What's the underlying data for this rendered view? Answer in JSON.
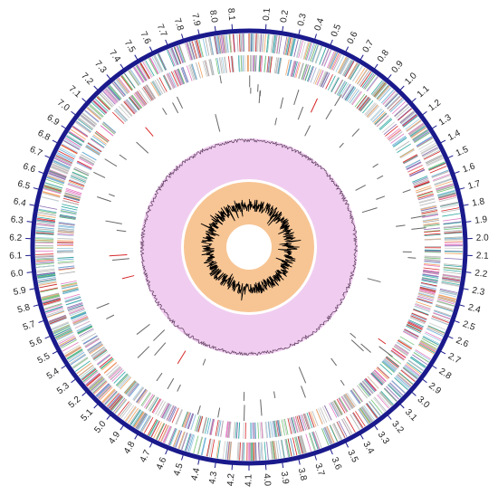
{
  "chart_data": {
    "type": "circular-genome",
    "xlim": [
      0,
      8.2
    ],
    "xticks": [
      0.1,
      0.2,
      0.3,
      0.4,
      0.5,
      0.6,
      0.7,
      0.8,
      0.9,
      {
        "value": 1,
        "label": "1.0"
      },
      1.1,
      1.2,
      1.3,
      1.4,
      1.5,
      1.6,
      1.7,
      1.8,
      1.9,
      {
        "value": 2,
        "label": "2.0"
      },
      2.1,
      2.2,
      2.3,
      2.4,
      2.5,
      2.6,
      2.7,
      2.8,
      2.9,
      {
        "value": 3,
        "label": "3.0"
      },
      3.1,
      3.2,
      3.3,
      3.4,
      3.5,
      3.6,
      3.7,
      3.8,
      3.9,
      {
        "value": 4,
        "label": "4.0"
      },
      4.1,
      4.2,
      4.3,
      4.4,
      4.5,
      4.6,
      4.7,
      4.8,
      4.9,
      {
        "value": 5,
        "label": "5.0"
      },
      5.1,
      5.2,
      5.3,
      5.4,
      5.5,
      5.6,
      5.7,
      5.8,
      5.9,
      {
        "value": 6,
        "label": "6.0"
      },
      6.1,
      6.2,
      6.3,
      6.4,
      6.5,
      6.6,
      6.7,
      6.8,
      6.9,
      {
        "value": 7,
        "label": "7.0"
      },
      7.1,
      7.2,
      7.3,
      7.4,
      7.5,
      7.6,
      7.7,
      7.8,
      7.9,
      {
        "value": 8,
        "label": "8.0"
      },
      8.1
    ]
  }
}
